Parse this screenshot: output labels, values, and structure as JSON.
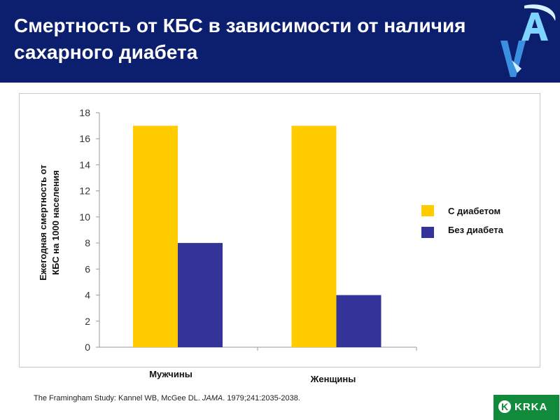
{
  "header": {
    "title_line1": "Смертность от КБС в зависимости от наличия",
    "title_line2": "сахарного диабета"
  },
  "brand": {
    "krka_label": "KRKA",
    "va_letters": "VA"
  },
  "colors": {
    "header_bg": "#0b1f6e",
    "with_diabetes": "#ffcc00",
    "without_diabetes": "#333399",
    "krka_green": "#118a3c"
  },
  "chart_data": {
    "type": "bar",
    "categories": [
      "Мужчины",
      "Женщины"
    ],
    "series": [
      {
        "name": "С диабетом",
        "values": [
          17,
          17
        ],
        "color": "#ffcc00"
      },
      {
        "name": "Без диабета",
        "values": [
          8,
          4
        ],
        "color": "#333399"
      }
    ],
    "ylabel_line1": "Ежегодная смертность от",
    "ylabel_line2": "КБС  на 1000 населения",
    "ylim": [
      0,
      18
    ],
    "yticks": [
      0,
      2,
      4,
      6,
      8,
      10,
      12,
      14,
      16,
      18
    ],
    "grid": false,
    "legend_position": "right"
  },
  "source": {
    "prefix": "The Framingham Study: Kannel WB, McGee DL. ",
    "journal": "JAMA",
    "suffix": ". 1979;241:2035-2038."
  }
}
